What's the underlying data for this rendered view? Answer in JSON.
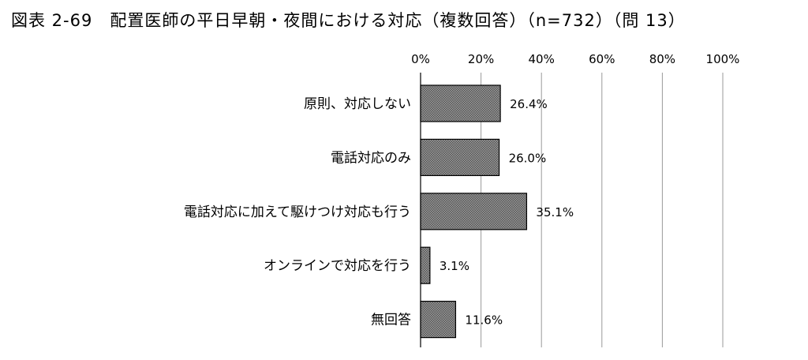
{
  "figure_title": "図表 2-69　配置医師の平日早朝・夜間における対応（複数回答）（n=732）（問 13）",
  "chart_data": {
    "type": "bar",
    "orientation": "horizontal",
    "categories": [
      "原則、対応しない",
      "電話対応のみ",
      "電話対応に加えて駆けつけ対応も行う",
      "オンラインで対応を行う",
      "無回答"
    ],
    "values": [
      26.4,
      26.0,
      35.1,
      3.1,
      11.6
    ],
    "value_labels": [
      "26.4%",
      "26.0%",
      "35.1%",
      "3.1%",
      "11.6%"
    ],
    "xlim": [
      0,
      100
    ],
    "x_ticks": [
      0,
      20,
      40,
      60,
      80,
      100
    ],
    "x_tick_labels": [
      "0%",
      "20%",
      "40%",
      "60%",
      "80%",
      "100%"
    ],
    "x_axis_position": "top",
    "grid": true,
    "bar_fill": "#8c8c8c",
    "bar_edge": "#000000",
    "grid_color": "#9a9a9a"
  }
}
